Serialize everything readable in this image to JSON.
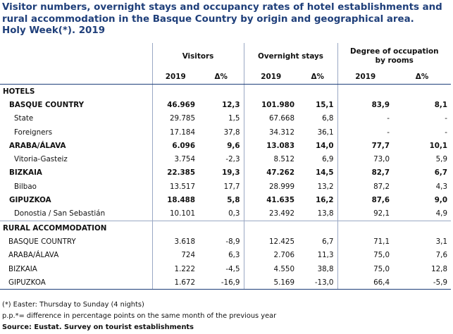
{
  "title": {
    "line1": "Visitor numbers, overnight stays and occupancy rates of hotel establishments and",
    "line2": "rural accommodation in the Basque Country by origin and geographical area.",
    "line3": "Holy Week(*). 2019"
  },
  "header": {
    "visitors": "Visitors",
    "stays": "Overnight stays",
    "occupancy": "Degree of occupation by rooms",
    "year": "2019",
    "delta": "Δ%"
  },
  "rows": [
    {
      "kind": "section",
      "label": "HOTELS"
    },
    {
      "kind": "region",
      "label": "BASQUE COUNTRY",
      "v": "46.969",
      "vd": "12,3",
      "s": "101.980",
      "sd": "15,1",
      "o": "83,9",
      "od": "8,1"
    },
    {
      "kind": "sub",
      "label": "State",
      "v": "29.785",
      "vd": "1,5",
      "s": "67.668",
      "sd": "6,8",
      "o": "-",
      "od": "-"
    },
    {
      "kind": "sub",
      "label": "Foreigners",
      "v": "17.184",
      "vd": "37,8",
      "s": "34.312",
      "sd": "36,1",
      "o": "-",
      "od": "-"
    },
    {
      "kind": "region",
      "label": "ARABA/ÁLAVA",
      "v": "6.096",
      "vd": "9,6",
      "s": "13.083",
      "sd": "14,0",
      "o": "77,7",
      "od": "10,1"
    },
    {
      "kind": "sub",
      "label": "Vitoria-Gasteiz",
      "v": "3.754",
      "vd": "-2,3",
      "s": "8.512",
      "sd": "6,9",
      "o": "73,0",
      "od": "5,9"
    },
    {
      "kind": "region",
      "label": "BIZKAIA",
      "v": "22.385",
      "vd": "19,3",
      "s": "47.262",
      "sd": "14,5",
      "o": "82,7",
      "od": "6,7"
    },
    {
      "kind": "sub",
      "label": "Bilbao",
      "v": "13.517",
      "vd": "17,7",
      "s": "28.999",
      "sd": "13,2",
      "o": "87,2",
      "od": "4,3"
    },
    {
      "kind": "region",
      "label": "GIPUZKOA",
      "v": "18.488",
      "vd": "5,8",
      "s": "41.635",
      "sd": "16,2",
      "o": "87,6",
      "od": "9,0"
    },
    {
      "kind": "sub",
      "label": "Donostia / San Sebastián",
      "v": "10.101",
      "vd": "0,3",
      "s": "23.492",
      "sd": "13,8",
      "o": "92,1",
      "od": "4,9"
    },
    {
      "kind": "section",
      "label": "RURAL ACCOMMODATION"
    },
    {
      "kind": "rural",
      "label": "BASQUE COUNTRY",
      "v": "3.618",
      "vd": "-8,9",
      "s": "12.425",
      "sd": "6,7",
      "o": "71,1",
      "od": "3,1"
    },
    {
      "kind": "rural",
      "label": "ARABA/ÁLAVA",
      "v": "724",
      "vd": "6,3",
      "s": "2.706",
      "sd": "11,3",
      "o": "75,0",
      "od": "7,6"
    },
    {
      "kind": "rural",
      "label": "BIZKAIA",
      "v": "1.222",
      "vd": "-4,5",
      "s": "4.550",
      "sd": "38,8",
      "o": "75,0",
      "od": "12,8"
    },
    {
      "kind": "rural",
      "label": "GIPUZKOA",
      "v": "1.672",
      "vd": "-16,9",
      "s": "5.169",
      "sd": "-13,0",
      "o": "66,4",
      "od": "-5,9"
    }
  ],
  "notes": {
    "easter": "(*) Easter: Thursday to Sunday (4 nights)",
    "pp": "p.p.*= difference in percentage points on the same month of the previous year",
    "source": "Source: Eustat. Survey on tourist establishments"
  }
}
